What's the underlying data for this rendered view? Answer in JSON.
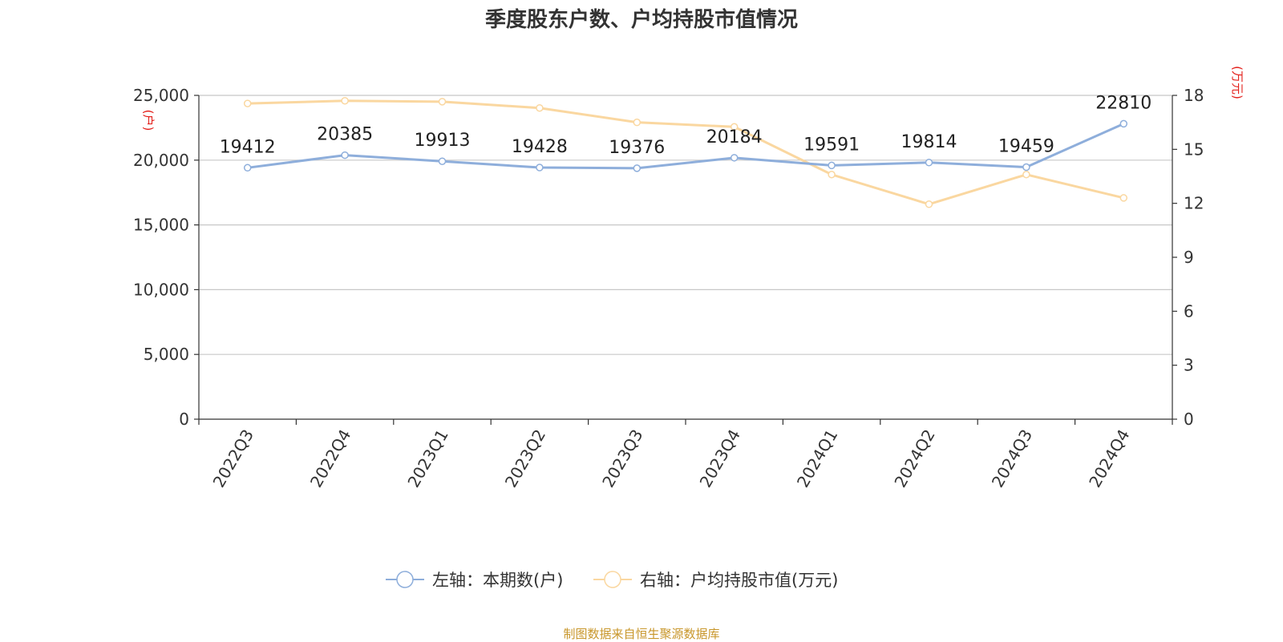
{
  "title": "季度股东户数、户均持股市值情况",
  "source": "制图数据来自恒生聚源数据库",
  "colors": {
    "left_series": "#8eaedb",
    "right_series": "#fad7a0",
    "grid": "#c8c8c8",
    "axis": "#333333",
    "unit": "#e3201b",
    "source": "#c8962a"
  },
  "chart_data": {
    "type": "line",
    "categories": [
      "2022Q3",
      "2022Q4",
      "2023Q1",
      "2023Q2",
      "2023Q3",
      "2023Q4",
      "2024Q1",
      "2024Q2",
      "2024Q3",
      "2024Q4"
    ],
    "y_left": {
      "unit": "(户)",
      "lim": [
        0,
        25000
      ],
      "ticks": [
        0,
        5000,
        10000,
        15000,
        20000,
        25000
      ],
      "tick_labels": [
        "0",
        "5,000",
        "10,000",
        "15,000",
        "20,000",
        "25,000"
      ]
    },
    "y_right": {
      "unit": "(万元)",
      "lim": [
        0,
        18
      ],
      "ticks": [
        0,
        3,
        6,
        9,
        12,
        15,
        18
      ],
      "tick_labels": [
        "0",
        "3",
        "6",
        "9",
        "12",
        "15",
        "18"
      ]
    },
    "grid": true,
    "legend_position": "bottom",
    "series": [
      {
        "name": "左轴：本期数(户)",
        "axis": "left",
        "values": [
          19412,
          20385,
          19913,
          19428,
          19376,
          20184,
          19591,
          19814,
          19459,
          22810
        ],
        "labels": [
          "19412",
          "20385",
          "19913",
          "19428",
          "19376",
          "20184",
          "19591",
          "19814",
          "19459",
          "22810"
        ]
      },
      {
        "name": "右轴：户均持股市值(万元)",
        "axis": "right",
        "values": [
          17.55,
          17.7,
          17.65,
          17.3,
          16.5,
          16.25,
          13.6,
          11.95,
          13.6,
          12.3
        ]
      }
    ]
  }
}
